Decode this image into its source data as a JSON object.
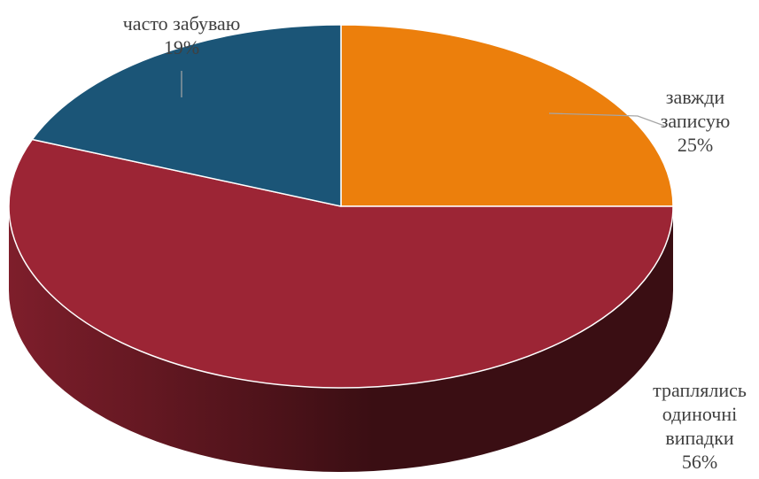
{
  "chart_data": {
    "type": "pie",
    "style": "3d",
    "slices": [
      {
        "label_lines": [
          "завжди",
          "записую"
        ],
        "value": 25,
        "value_label": "25%",
        "color": "#EC7F0C"
      },
      {
        "label_lines": [
          "траплялись",
          "одиночні",
          "випадки"
        ],
        "value": 56,
        "value_label": "56%",
        "color": "#9C2535"
      },
      {
        "label_lines": [
          "часто забуваю"
        ],
        "value": 19,
        "value_label": "19%",
        "color": "#1B5577"
      }
    ],
    "side_colors": {
      "dark": "#3A0E13",
      "light": "#7E1E2B"
    },
    "legend": "none"
  }
}
